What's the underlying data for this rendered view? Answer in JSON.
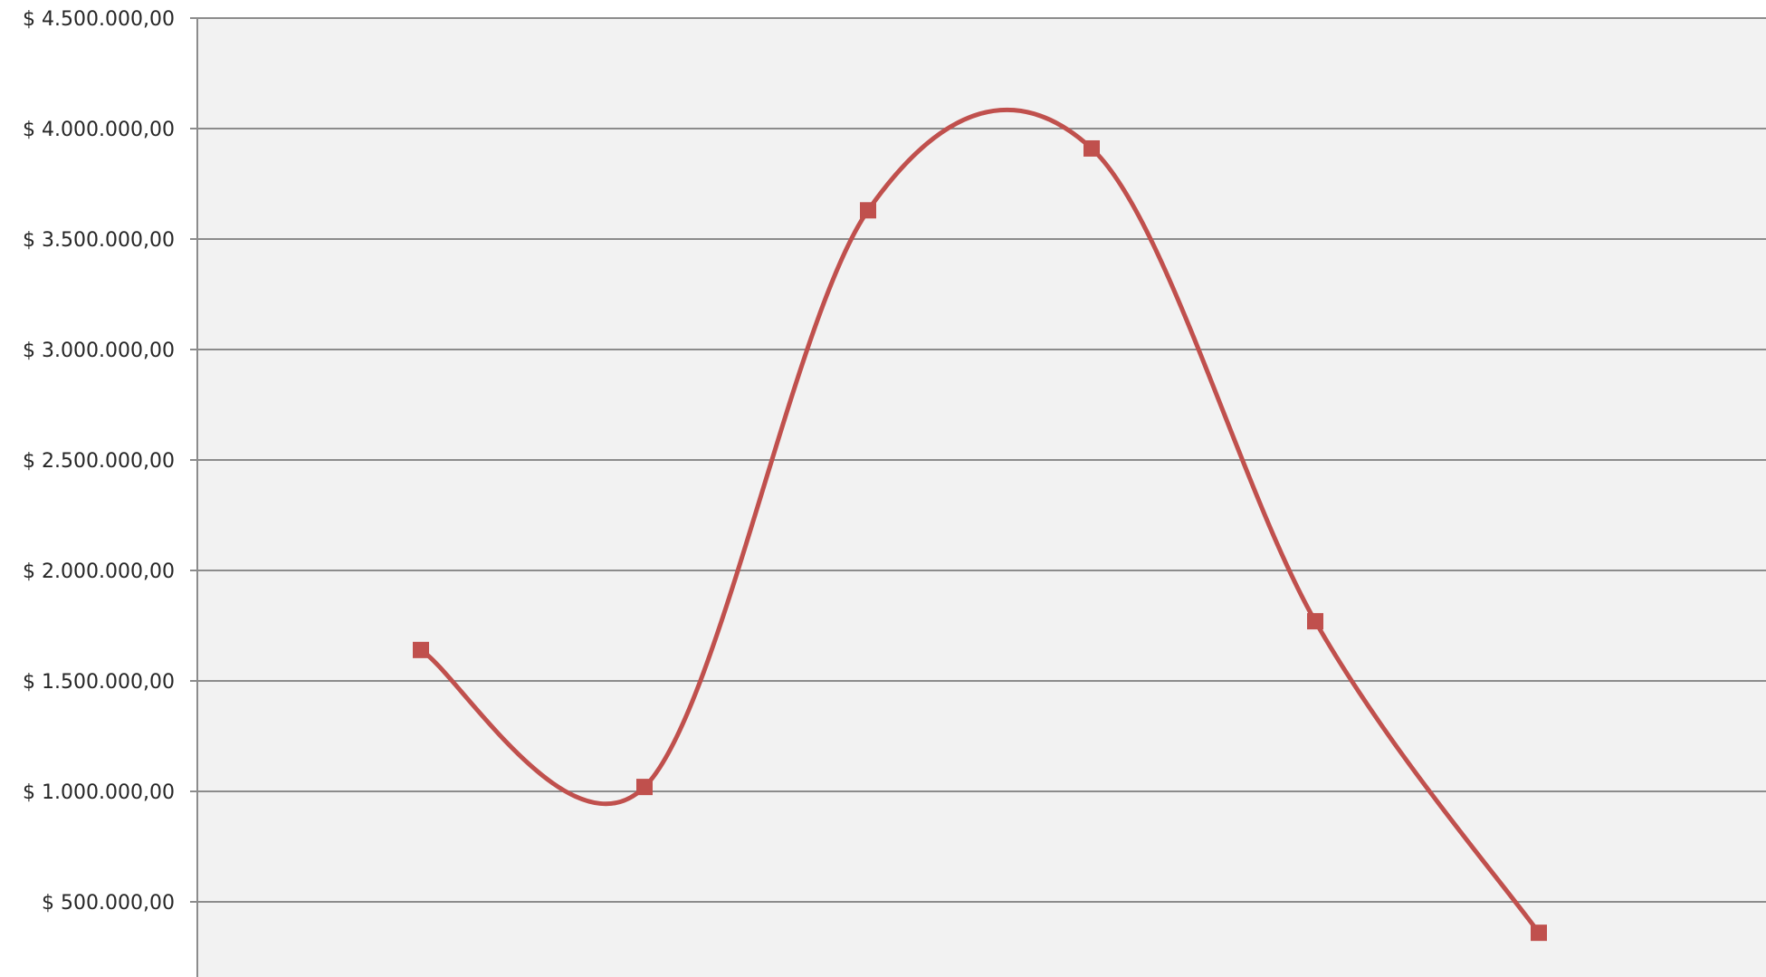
{
  "chart_data": {
    "type": "line",
    "smooth": true,
    "title": "",
    "xlabel": "",
    "ylabel": "",
    "grid": true,
    "legend": "none",
    "ylim": [
      0,
      4500000
    ],
    "y_ticks": [
      {
        "value": 500000,
        "label": "$ 500.000,00"
      },
      {
        "value": 1000000,
        "label": "$ 1.000.000,00"
      },
      {
        "value": 1500000,
        "label": "$ 1.500.000,00"
      },
      {
        "value": 2000000,
        "label": "$ 2.000.000,00"
      },
      {
        "value": 2500000,
        "label": "$ 2.500.000,00"
      },
      {
        "value": 3000000,
        "label": "$ 3.000.000,00"
      },
      {
        "value": 3500000,
        "label": "$ 3.500.000,00"
      },
      {
        "value": 4000000,
        "label": "$ 4.000.000,00"
      },
      {
        "value": 4500000,
        "label": "$ 4.500.000,00"
      }
    ],
    "series": [
      {
        "values": [
          1640000,
          1020000,
          3630000,
          3910000,
          1770000,
          360000
        ],
        "color": "#c0504d",
        "marker": "square"
      }
    ]
  },
  "colors": {
    "plot_background": "#f2f2f2",
    "gridline": "#8c8c8c",
    "axis_line": "#8c8c8c",
    "tick_label": "#262626"
  }
}
